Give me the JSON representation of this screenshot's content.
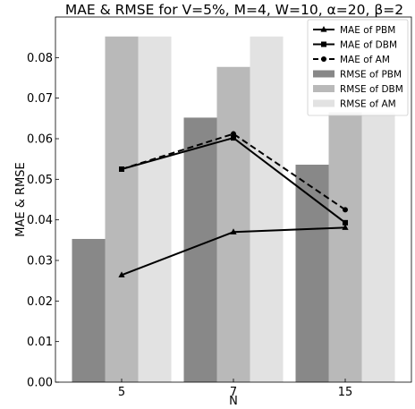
{
  "chart_data": {
    "type": "bar",
    "title": "MAE & RMSE for V=5%, M=4, W=10, α=20, β=2",
    "xlabel": "N",
    "ylabel": "MAE & RMSE",
    "categories": [
      "5",
      "7",
      "15"
    ],
    "ylim": [
      0,
      0.09
    ],
    "yticks": [
      "0.00",
      "0.01",
      "0.02",
      "0.03",
      "0.04",
      "0.05",
      "0.06",
      "0.07",
      "0.08"
    ],
    "grid": false,
    "legend": "top-right",
    "bar_series": [
      {
        "name": "RMSE of PBM",
        "color": "#888888",
        "values": [
          0.0353,
          0.0652,
          0.0536
        ]
      },
      {
        "name": "RMSE of DBM",
        "color": "#b9b9b9",
        "values": [
          0.0852,
          0.0777,
          0.0665
        ]
      },
      {
        "name": "RMSE of AM",
        "color": "#e2e2e2",
        "values": [
          0.0852,
          0.0852,
          0.0665
        ]
      }
    ],
    "line_series": [
      {
        "name": "MAE of PBM",
        "marker": "triangle",
        "dash": "solid",
        "values": [
          0.0264,
          0.037,
          0.0381
        ]
      },
      {
        "name": "MAE of DBM",
        "marker": "square",
        "dash": "solid",
        "values": [
          0.0525,
          0.0602,
          0.0393
        ]
      },
      {
        "name": "MAE of AM",
        "marker": "circle",
        "dash": "dashed",
        "values": [
          0.0525,
          0.0612,
          0.0425
        ]
      }
    ]
  }
}
